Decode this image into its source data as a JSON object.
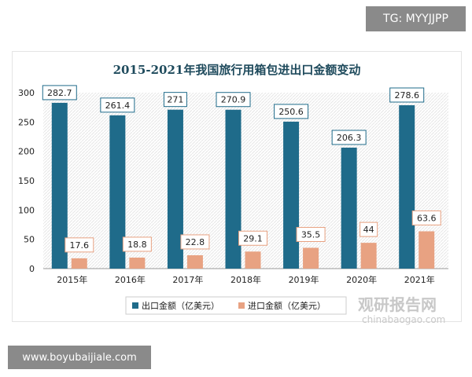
{
  "overlay": {
    "tg": "TG: MYYJJPP",
    "site": "www.boyubaijiale.com",
    "watermark": "观研报告网",
    "watermark_url": "chinabaogao.com"
  },
  "chart_data": {
    "type": "bar",
    "title": "2015-2021年我国旅行用箱包进出口金额变动",
    "categories": [
      "2015年",
      "2016年",
      "2017年",
      "2018年",
      "2019年",
      "2020年",
      "2021年"
    ],
    "series": [
      {
        "name": "出口金额（亿美元）",
        "color": "#1f6b8a",
        "values": [
          282.7,
          261.4,
          271,
          270.9,
          250.6,
          206.3,
          278.6
        ]
      },
      {
        "name": "进口金额（亿美元）",
        "color": "#e8a282",
        "values": [
          17.6,
          18.8,
          22.8,
          29.1,
          35.5,
          44,
          63.6
        ]
      }
    ],
    "yticks": [
      0,
      50,
      100,
      150,
      200,
      250,
      300
    ],
    "ylim": [
      0,
      300
    ],
    "legend": "bottom",
    "grid": false
  }
}
